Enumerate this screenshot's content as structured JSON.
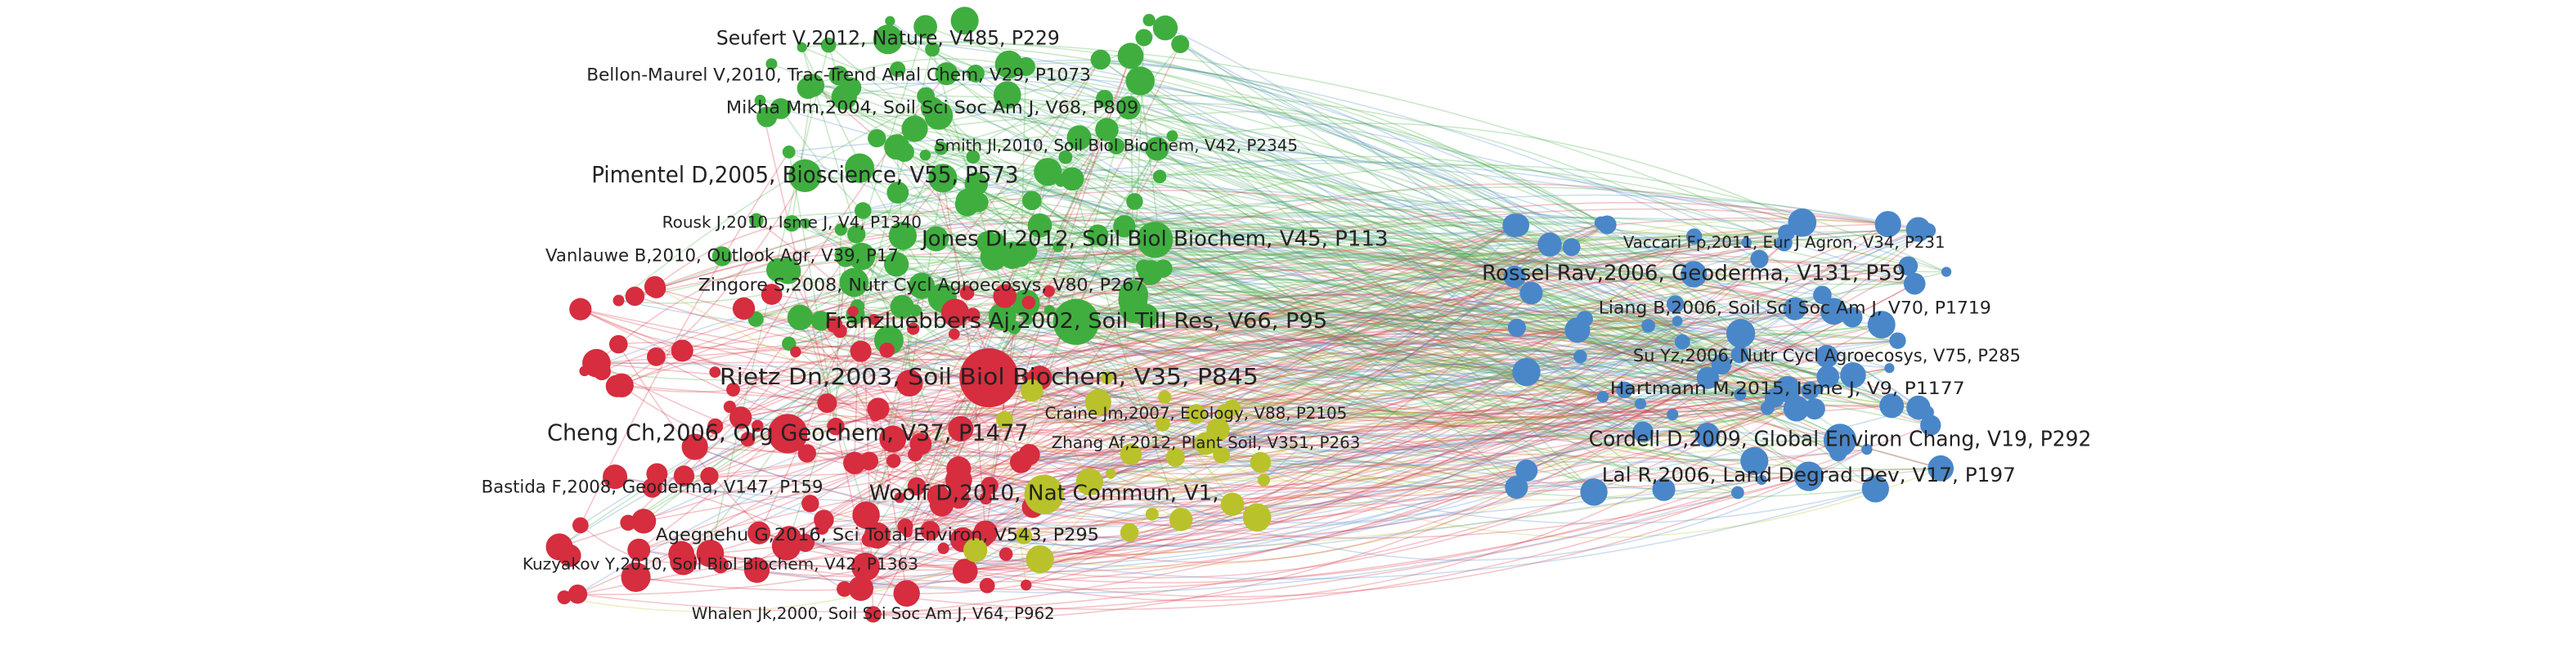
{
  "nodes": [
    {
      "label": "Seufert V,2012, Nature, V485, P229",
      "color": "#3fae3f"
    },
    {
      "label": "Bellon-Maurel V,2010, Trac-Trend Anal Chem, V29, P1073",
      "color": "#3fae3f"
    },
    {
      "label": "Mikha Mm,2004, Soil Sci Soc Am J, V68, P809",
      "color": "#3fae3f"
    },
    {
      "label": "Smith Jl,2010, Soil Biol Biochem, V42, P2345",
      "color": "#3fae3f"
    },
    {
      "label": "Pimentel D,2005, Bioscience, V55, P573",
      "color": "#3fae3f"
    },
    {
      "label": "Rousk J,2010, Isme J, V4, P1340",
      "color": "#3fae3f"
    },
    {
      "label": "Jones Dl,2012, Soil Biol Biochem, V45, P113",
      "color": "#3fae3f"
    },
    {
      "label": "Vanlauwe B,2010, Outlook Agr, V39, P17",
      "color": "#3fae3f"
    },
    {
      "label": "Zingore S,2008, Nutr Cycl Agroecosys, V80, P267",
      "color": "#3fae3f"
    },
    {
      "label": "Franzluebbers Aj,2002, Soil Till Res, V66, P95",
      "color": "#3fae3f"
    },
    {
      "label": "Rietz Dn,2003, Soil Biol Biochem, V35, P845",
      "color": "#d62d3f"
    },
    {
      "label": "Cheng Ch,2006, Org Geochem, V37, P1477",
      "color": "#d62d3f"
    },
    {
      "label": "Craine Jm,2007, Ecology, V88, P2105",
      "color": "#b9c22a"
    },
    {
      "label": "Zhang Af,2012, Plant Soil, V351, P263",
      "color": "#b9c22a"
    },
    {
      "label": "Bastida F,2008, Geoderma, V147, P159",
      "color": "#d62d3f"
    },
    {
      "label": "Woolf D,2010, Nat Commun, V1,",
      "color": "#b9c22a"
    },
    {
      "label": "Agegnehu G,2016, Sci Total Environ, V543, P295",
      "color": "#d62d3f"
    },
    {
      "label": "Kuzyakov Y,2010, Soil Biol Biochem, V42, P1363",
      "color": "#d62d3f"
    },
    {
      "label": "Whalen Jk,2000, Soil Sci Soc Am J, V64, P962",
      "color": "#d62d3f"
    },
    {
      "label": "Vaccari Fp,2011, Eur J Agron, V34, P231",
      "color": "#4a87c9"
    },
    {
      "label": "Rossel Rav,2006, Geoderma, V131, P59",
      "color": "#4a87c9"
    },
    {
      "label": "Liang B,2006, Soil Sci Soc Am J, V70, P1719",
      "color": "#4a87c9"
    },
    {
      "label": "Su Yz,2006, Nutr Cycl Agroecosys, V75, P285",
      "color": "#4a87c9"
    },
    {
      "label": "Hartmann M,2015, Isme J, V9, P1177",
      "color": "#4a87c9"
    },
    {
      "label": "Cordell D,2009, Global Environ Chang, V19, P292",
      "color": "#4a87c9"
    },
    {
      "label": "Lal R,2006, Land Degrad Dev, V17, P197",
      "color": "#4a87c9"
    }
  ]
}
